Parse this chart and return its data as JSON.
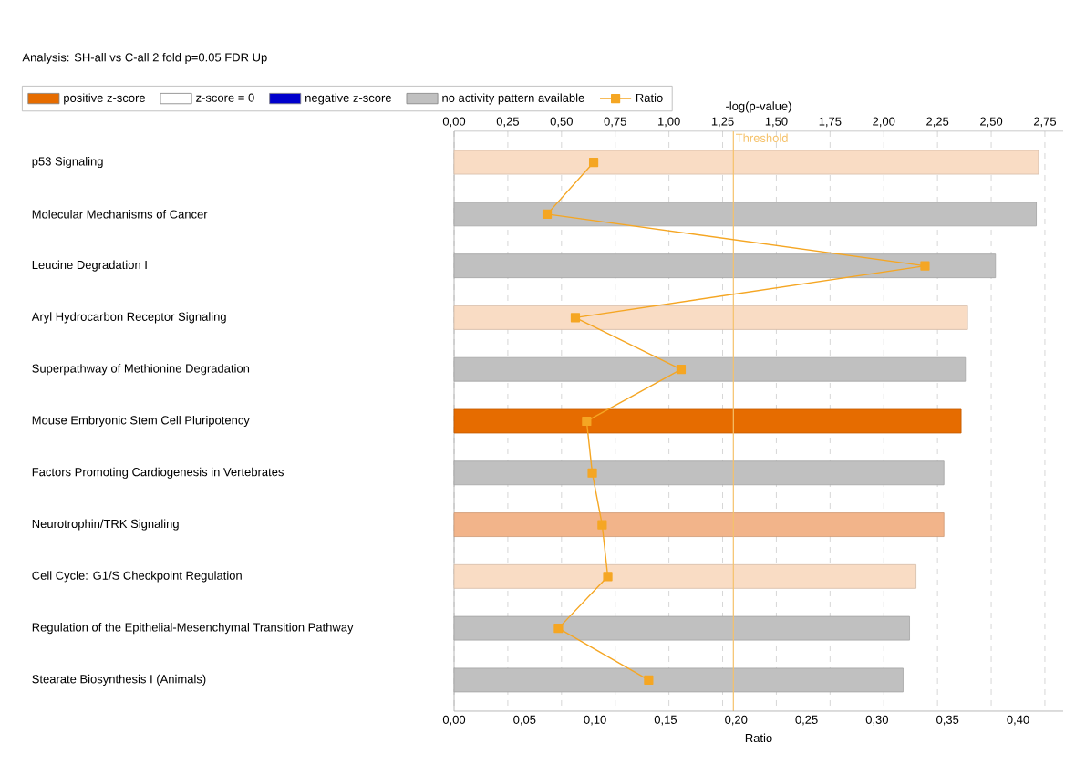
{
  "chart_data": {
    "type": "bar",
    "orientation": "horizontal",
    "title": "Analysis: SH-all vs C-all 2 fold p=0.05 FDR Up",
    "categories": [
      "p53 Signaling",
      "Molecular Mechanisms of Cancer",
      "Leucine Degradation I",
      "Aryl Hydrocarbon Receptor Signaling",
      "Superpathway of Methionine Degradation",
      "Mouse Embryonic Stem Cell Pluripotency",
      "Factors Promoting Cardiogenesis in Vertebrates",
      "Neurotrophin/TRK Signaling",
      "Cell Cycle: G1/S Checkpoint Regulation",
      "Regulation of the Epithelial-Mesenchymal Transition Pathway",
      "Stearate Biosynthesis I (Animals)"
    ],
    "series": [
      {
        "name": "positive z-score",
        "axis": "x2",
        "color": "#e66c00",
        "colors": [
          "#f9dcc4",
          null,
          null,
          "#f9dcc4",
          null,
          "#e66c00",
          null,
          "#f2b48a",
          "#f9dcc4",
          null,
          null
        ],
        "values": [
          2.72,
          null,
          null,
          2.39,
          null,
          2.36,
          null,
          2.28,
          2.15,
          null,
          null
        ]
      },
      {
        "name": "z-score = 0",
        "axis": "x2",
        "color": "#ffffff",
        "values": [
          null,
          null,
          null,
          null,
          null,
          null,
          null,
          null,
          null,
          null,
          null
        ]
      },
      {
        "name": "negative z-score",
        "axis": "x2",
        "color": "#0000cc",
        "values": [
          null,
          null,
          null,
          null,
          null,
          null,
          null,
          null,
          null,
          null,
          null
        ]
      },
      {
        "name": "no activity pattern available",
        "axis": "x2",
        "color": "#c0c0c0",
        "values": [
          null,
          2.71,
          2.52,
          null,
          2.38,
          null,
          2.28,
          null,
          null,
          2.12,
          2.09
        ]
      },
      {
        "name": "Ratio",
        "type": "line",
        "color": "#f5a623",
        "values": [
          0.099,
          0.066,
          0.334,
          0.086,
          0.161,
          0.094,
          0.098,
          0.105,
          0.109,
          0.074,
          0.138
        ]
      }
    ],
    "marker": "square",
    "grid": "x",
    "legend": "top left",
    "x2label": "-log(p-value)",
    "x2lim": [
      0,
      2.835
    ],
    "x2ticks": [
      {
        "value": 0,
        "label": "0,00"
      },
      {
        "value": 0.25,
        "label": "0,25"
      },
      {
        "value": 0.5,
        "label": "0,50"
      },
      {
        "value": 0.75,
        "label": "0,75"
      },
      {
        "value": 1.0,
        "label": "1,00"
      },
      {
        "value": 1.25,
        "label": "1,25"
      },
      {
        "value": 1.5,
        "label": "1,50"
      },
      {
        "value": 1.75,
        "label": "1,75"
      },
      {
        "value": 2.0,
        "label": "2,00"
      },
      {
        "value": 2.25,
        "label": "2,25"
      },
      {
        "value": 2.5,
        "label": "2,50"
      },
      {
        "value": 2.75,
        "label": "2,75"
      }
    ],
    "xlabel": "Ratio",
    "xlim": [
      0,
      0.432
    ],
    "xticks": [
      {
        "value": 0,
        "label": "0,00"
      },
      {
        "value": 0.05,
        "label": "0,05"
      },
      {
        "value": 0.1,
        "label": "0,10"
      },
      {
        "value": 0.15,
        "label": "0,15"
      },
      {
        "value": 0.2,
        "label": "0,20"
      },
      {
        "value": 0.25,
        "label": "0,25"
      },
      {
        "value": 0.3,
        "label": "0,30"
      },
      {
        "value": 0.35,
        "label": "0,35"
      },
      {
        "value": 0.4,
        "label": "0,40"
      }
    ],
    "ref_lines": [
      {
        "axis": "x2",
        "value": 1.3,
        "label": "Threshold",
        "color": "#f5c26b"
      }
    ]
  }
}
